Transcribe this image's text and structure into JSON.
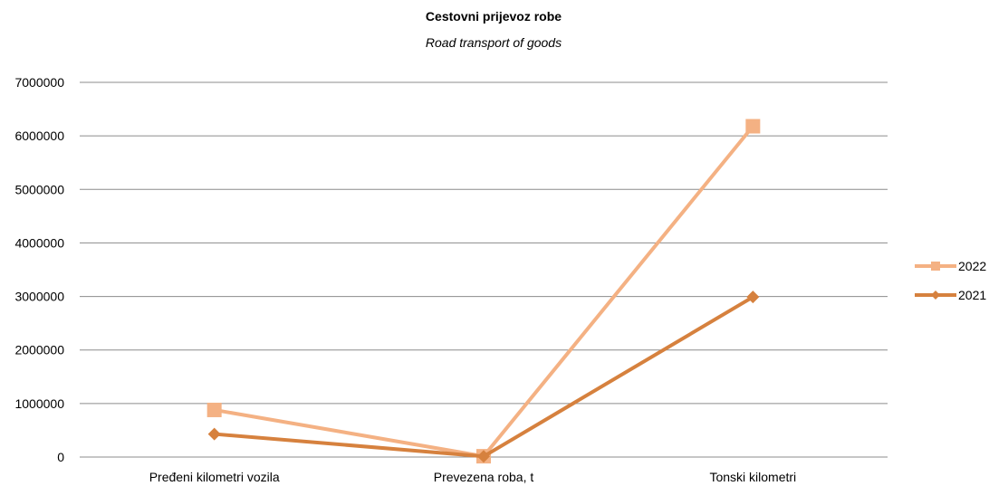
{
  "chart_data": {
    "type": "line",
    "title": "Cestovni prijevoz robe",
    "subtitle": "Road transport of goods",
    "categories": [
      "Pređeni kilometri vozila",
      "Prevezena roba, t",
      "Tonski kilometri"
    ],
    "ylim": [
      0,
      7000000
    ],
    "yticks": [
      0,
      1000000,
      2000000,
      3000000,
      4000000,
      5000000,
      6000000,
      7000000
    ],
    "grid": true,
    "legend_position": "right",
    "series": [
      {
        "name": "2022",
        "values": [
          880000,
          15000,
          6180000
        ],
        "color": "#f4b183",
        "marker": "square"
      },
      {
        "name": "2021",
        "values": [
          430000,
          12000,
          2990000
        ],
        "color": "#d6813e",
        "marker": "diamond"
      }
    ]
  }
}
